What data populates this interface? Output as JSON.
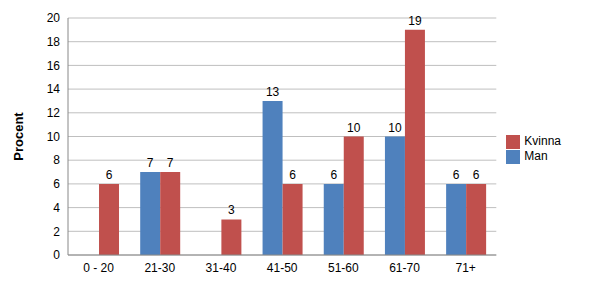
{
  "chart_data": {
    "type": "bar",
    "y_label": "Procent",
    "categories": [
      "0 - 20",
      "21-30",
      "31-40",
      "41-50",
      "51-60",
      "61-70",
      "71+"
    ],
    "series": [
      {
        "name": "Man",
        "color": "#4f81bd",
        "values": [
          0,
          7,
          0,
          13,
          6,
          10,
          6
        ]
      },
      {
        "name": "Kvinna",
        "color": "#c0504d",
        "values": [
          6,
          7,
          3,
          6,
          10,
          19,
          6
        ]
      }
    ],
    "ylim": [
      0,
      20
    ],
    "yticks": [
      0,
      2,
      4,
      6,
      8,
      10,
      12,
      14,
      16,
      18,
      20
    ],
    "grid": true,
    "legend": "right",
    "data_labels": true
  }
}
